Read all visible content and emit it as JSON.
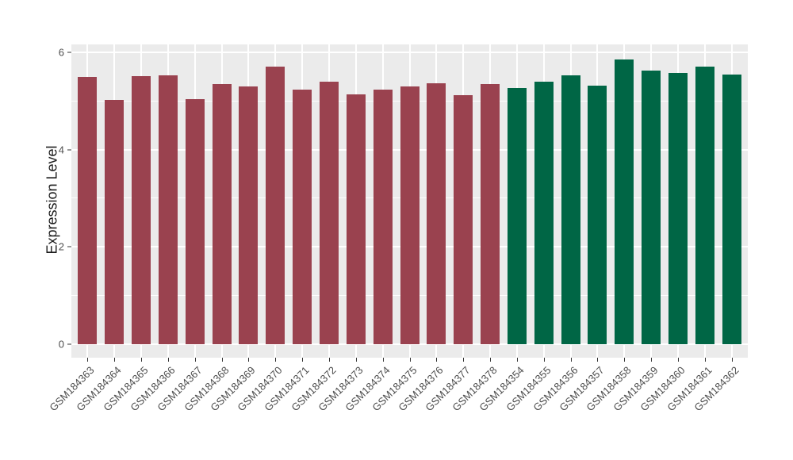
{
  "chart_data": {
    "type": "bar",
    "title": "",
    "xlabel": "",
    "ylabel": "Expression Level",
    "ylim": [
      0,
      6
    ],
    "yticks": [
      0,
      2,
      4,
      6
    ],
    "minor_gridlines": [
      1,
      3,
      5
    ],
    "legend_position": "none",
    "grid": "white horizontal major+minor and vertical per-category lines on gray panel",
    "panel_bg": "#EBEBEB",
    "gridline_color": "#FFFFFF",
    "tick_color": "#333333",
    "group_colors": {
      "group1": "#9A424F",
      "group2": "#006645"
    },
    "bars": [
      {
        "label": "GSM184363",
        "value": 5.5,
        "group": "group1"
      },
      {
        "label": "GSM184364",
        "value": 5.02,
        "group": "group1"
      },
      {
        "label": "GSM184365",
        "value": 5.51,
        "group": "group1"
      },
      {
        "label": "GSM184366",
        "value": 5.53,
        "group": "group1"
      },
      {
        "label": "GSM184367",
        "value": 5.03,
        "group": "group1"
      },
      {
        "label": "GSM184368",
        "value": 5.35,
        "group": "group1"
      },
      {
        "label": "GSM184369",
        "value": 5.3,
        "group": "group1"
      },
      {
        "label": "GSM184370",
        "value": 5.7,
        "group": "group1"
      },
      {
        "label": "GSM184371",
        "value": 5.23,
        "group": "group1"
      },
      {
        "label": "GSM184372",
        "value": 5.39,
        "group": "group1"
      },
      {
        "label": "GSM184373",
        "value": 5.13,
        "group": "group1"
      },
      {
        "label": "GSM184374",
        "value": 5.24,
        "group": "group1"
      },
      {
        "label": "GSM184375",
        "value": 5.3,
        "group": "group1"
      },
      {
        "label": "GSM184376",
        "value": 5.37,
        "group": "group1"
      },
      {
        "label": "GSM184377",
        "value": 5.12,
        "group": "group1"
      },
      {
        "label": "GSM184378",
        "value": 5.35,
        "group": "group1"
      },
      {
        "label": "GSM184354",
        "value": 5.26,
        "group": "group2"
      },
      {
        "label": "GSM184355",
        "value": 5.4,
        "group": "group2"
      },
      {
        "label": "GSM184356",
        "value": 5.52,
        "group": "group2"
      },
      {
        "label": "GSM184357",
        "value": 5.32,
        "group": "group2"
      },
      {
        "label": "GSM184358",
        "value": 5.86,
        "group": "group2"
      },
      {
        "label": "GSM184359",
        "value": 5.62,
        "group": "group2"
      },
      {
        "label": "GSM184360",
        "value": 5.58,
        "group": "group2"
      },
      {
        "label": "GSM184361",
        "value": 5.71,
        "group": "group2"
      },
      {
        "label": "GSM184362",
        "value": 5.54,
        "group": "group2"
      }
    ]
  }
}
